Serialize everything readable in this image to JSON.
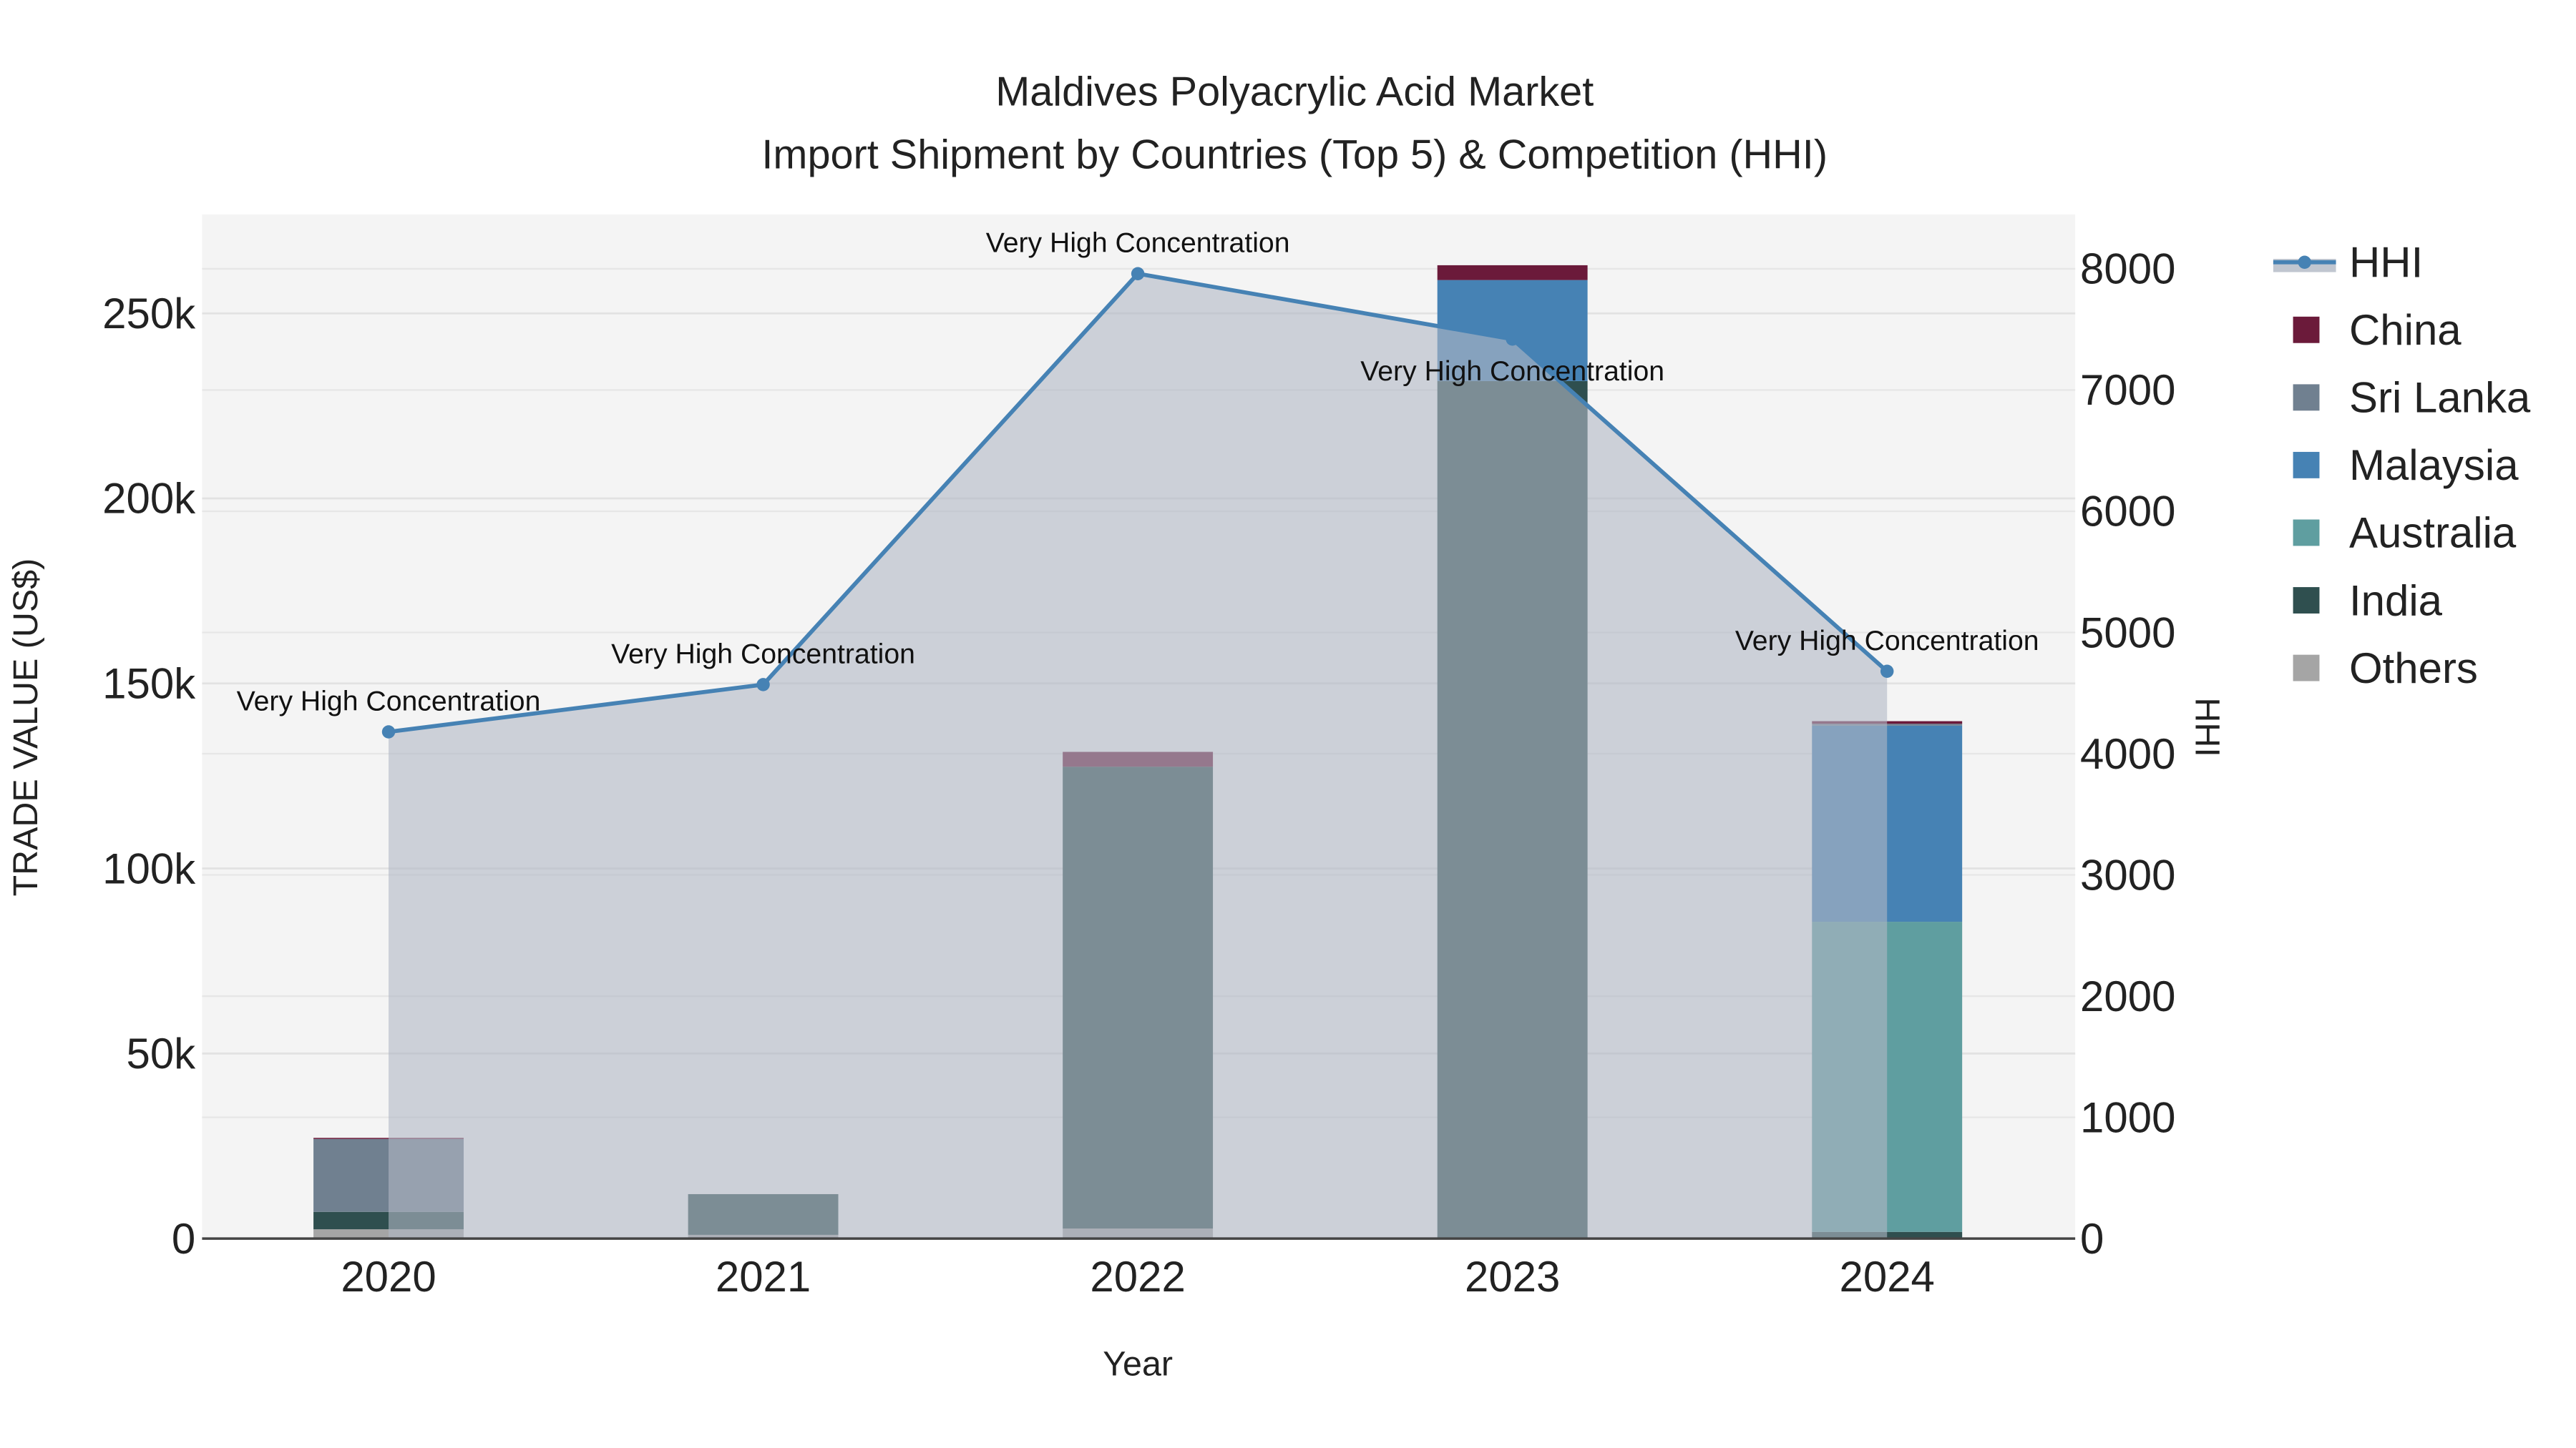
{
  "chart_data": {
    "type": "bar",
    "title": "Maldives Polyacrylic Acid Market",
    "subtitle": "Import Shipment by Countries (Top 5) & Competition (HHI)",
    "xlabel": "Year",
    "ylabel": "TRADE VALUE (US$)",
    "y2label": "HHI",
    "categories": [
      "2020",
      "2021",
      "2022",
      "2023",
      "2024"
    ],
    "ylim": [
      0,
      275000
    ],
    "y2lim": [
      0,
      8450
    ],
    "yticks": [
      0,
      50000,
      100000,
      150000,
      200000,
      250000
    ],
    "ytick_labels": [
      "0",
      "50k",
      "100k",
      "150k",
      "200k",
      "250k"
    ],
    "y2ticks": [
      0,
      1000,
      2000,
      3000,
      4000,
      5000,
      6000,
      7000,
      8000
    ],
    "y2tick_labels": [
      "0",
      "1000",
      "2000",
      "3000",
      "4000",
      "5000",
      "6000",
      "7000",
      "8000"
    ],
    "series": [
      {
        "name": "Others",
        "color": "#a5a5a5",
        "values": [
          2500,
          1000,
          2700,
          0,
          0
        ]
      },
      {
        "name": "India",
        "color": "#2f4f4f",
        "values": [
          4700,
          11000,
          124800,
          231700,
          1800
        ]
      },
      {
        "name": "Australia",
        "color": "#5f9ea0",
        "values": [
          0,
          0,
          0,
          0,
          83800
        ]
      },
      {
        "name": "Malaysia",
        "color": "#4682b4",
        "values": [
          0,
          0,
          0,
          27300,
          53000
        ]
      },
      {
        "name": "Sri Lanka",
        "color": "#708090",
        "values": [
          19700,
          0,
          0,
          0,
          500
        ]
      },
      {
        "name": "China",
        "color": "#6b1a3a",
        "values": [
          300,
          0,
          4000,
          4000,
          700
        ]
      }
    ],
    "hhi": {
      "name": "HHI",
      "color": "#4682b4",
      "values": [
        4180,
        4570,
        7960,
        7420,
        4680
      ]
    },
    "annotations": [
      "Very High Concentration",
      "Very High Concentration",
      "Very High Concentration",
      "Very High Concentration",
      "Very High Concentration"
    ],
    "legend": [
      "HHI",
      "China",
      "Sri Lanka",
      "Malaysia",
      "Australia",
      "India",
      "Others"
    ],
    "legend_placement": "right",
    "grid": true
  }
}
